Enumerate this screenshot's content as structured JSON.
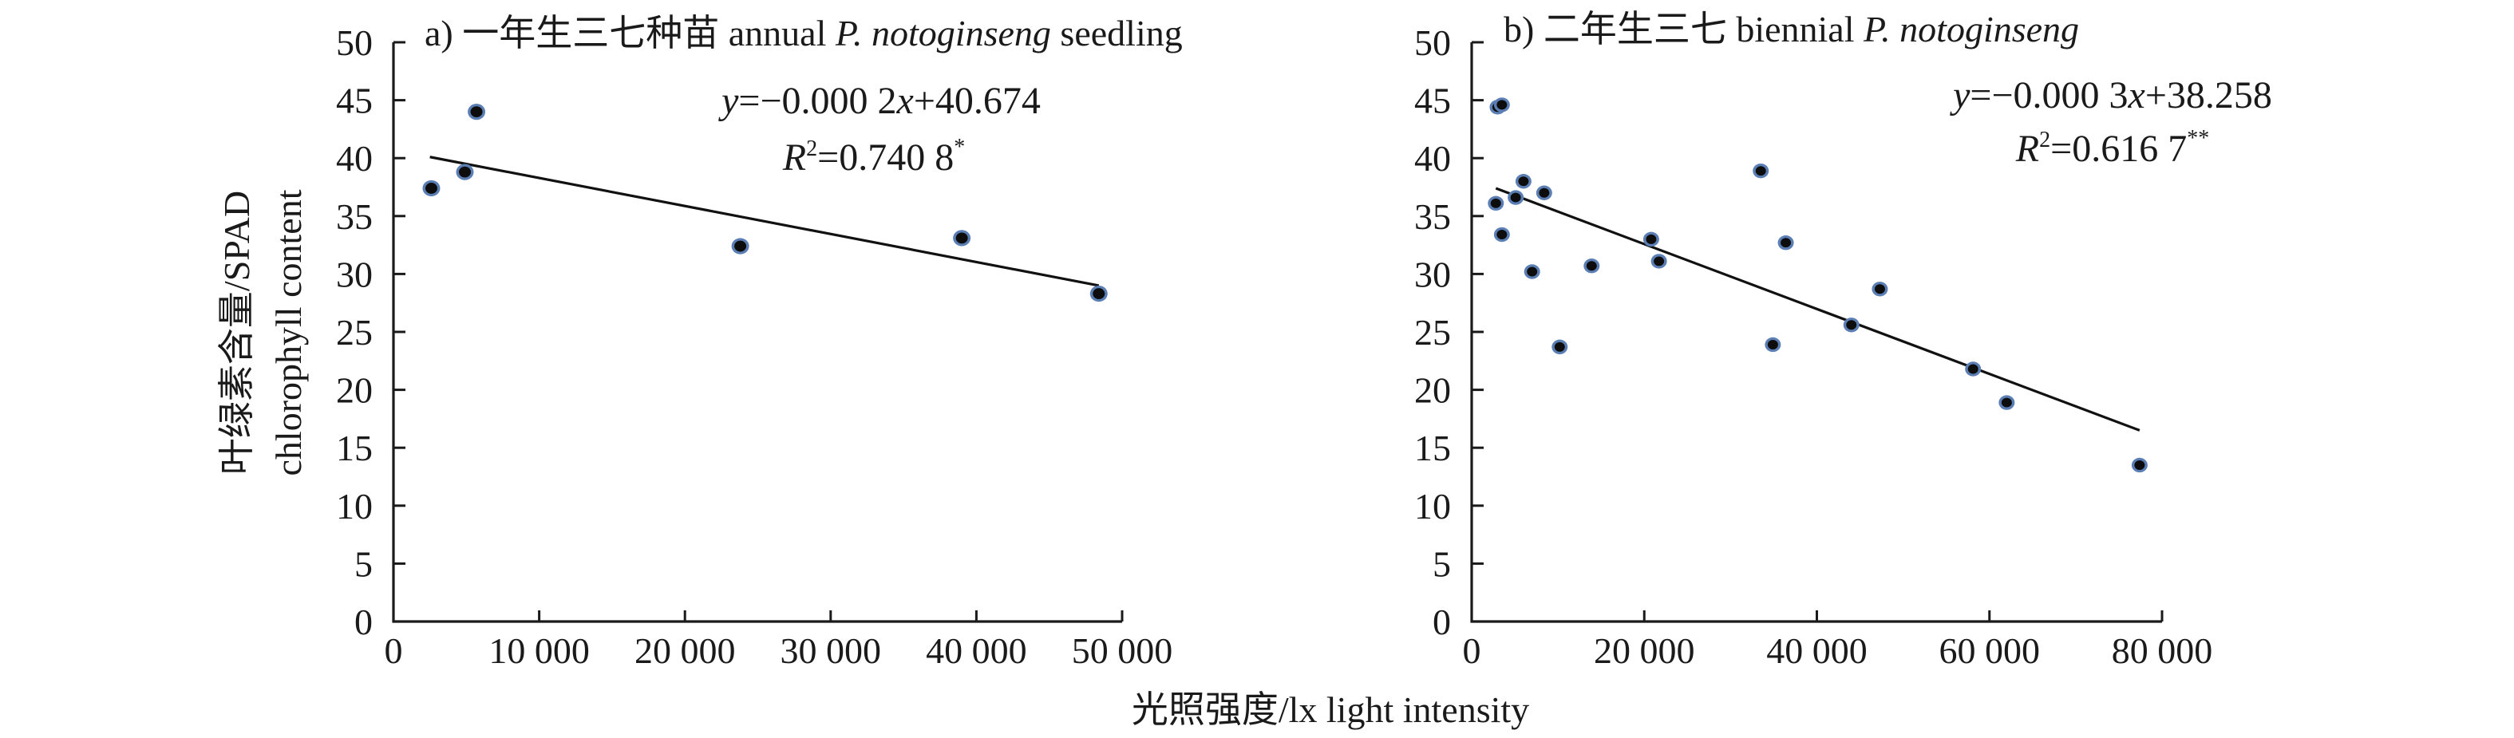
{
  "figure": {
    "y_axis_title_line1": "叶绿素含量/SPAD",
    "y_axis_title_line2": "chlorophyll content",
    "x_axis_title": "光照强度/lx light intensity"
  },
  "chart_data": [
    {
      "type": "scatter",
      "panel": "a",
      "title_prefix": "a) 一年生三七种苗 annual ",
      "title_italic": "P. notoginseng",
      "title_suffix": " seedling",
      "xlabel": "光照强度/lx light intensity",
      "ylabel": "叶绿素含量/SPAD chlorophyll content",
      "xlim": [
        0,
        50000
      ],
      "ylim": [
        0,
        50
      ],
      "xticks": [
        0,
        10000,
        20000,
        30000,
        40000,
        50000
      ],
      "xtick_labels": [
        "0",
        "10 000",
        "20 000",
        "30 000",
        "40 000",
        "50 000"
      ],
      "yticks": [
        0,
        5,
        10,
        15,
        20,
        25,
        30,
        35,
        40,
        45,
        50
      ],
      "ytick_labels": [
        "0",
        "5",
        "10",
        "15",
        "20",
        "25",
        "30",
        "35",
        "40",
        "45",
        "50"
      ],
      "grid": false,
      "points": [
        {
          "x": 2600,
          "y": 37.4
        },
        {
          "x": 4900,
          "y": 38.8
        },
        {
          "x": 5700,
          "y": 44.0
        },
        {
          "x": 23800,
          "y": 32.4
        },
        {
          "x": 39000,
          "y": 33.1
        },
        {
          "x": 48400,
          "y": 28.3
        }
      ],
      "trendline": {
        "x": [
          2500,
          48400
        ],
        "y": [
          40.1,
          29.0
        ],
        "equation_y": "y",
        "equation_rest": "=−0.000 2",
        "equation_x": "x",
        "equation_tail": "+40.674",
        "r2_label": "R",
        "r2_sup": "2",
        "r2_value": "=0.740 8",
        "significance": "*"
      }
    },
    {
      "type": "scatter",
      "panel": "b",
      "title_prefix": "b) 二年生三七 biennial ",
      "title_italic": "P. notoginseng",
      "title_suffix": "",
      "xlabel": "光照强度/lx light intensity",
      "ylabel": "叶绿素含量/SPAD chlorophyll content",
      "xlim": [
        0,
        80000
      ],
      "ylim": [
        0,
        50
      ],
      "xticks": [
        0,
        20000,
        40000,
        60000,
        80000
      ],
      "xtick_labels": [
        "0",
        "20 000",
        "40 000",
        "60 000",
        "80 000"
      ],
      "yticks": [
        0,
        5,
        10,
        15,
        20,
        25,
        30,
        35,
        40,
        45,
        50
      ],
      "ytick_labels": [
        "0",
        "5",
        "10",
        "15",
        "20",
        "25",
        "30",
        "35",
        "40",
        "45",
        "50"
      ],
      "grid": false,
      "points": [
        {
          "x": 3000,
          "y": 44.4
        },
        {
          "x": 3500,
          "y": 44.6
        },
        {
          "x": 2800,
          "y": 36.1
        },
        {
          "x": 5100,
          "y": 36.6
        },
        {
          "x": 6000,
          "y": 38.0
        },
        {
          "x": 8400,
          "y": 37.0
        },
        {
          "x": 3500,
          "y": 33.4
        },
        {
          "x": 7000,
          "y": 30.2
        },
        {
          "x": 13900,
          "y": 30.7
        },
        {
          "x": 20800,
          "y": 33.0
        },
        {
          "x": 21700,
          "y": 31.1
        },
        {
          "x": 10200,
          "y": 23.7
        },
        {
          "x": 33500,
          "y": 38.9
        },
        {
          "x": 36400,
          "y": 32.7
        },
        {
          "x": 34900,
          "y": 23.9
        },
        {
          "x": 47300,
          "y": 28.7
        },
        {
          "x": 44000,
          "y": 25.6
        },
        {
          "x": 58100,
          "y": 21.8
        },
        {
          "x": 62000,
          "y": 18.9
        },
        {
          "x": 77400,
          "y": 13.5
        }
      ],
      "trendline": {
        "x": [
          2800,
          77400
        ],
        "y": [
          37.4,
          16.5
        ],
        "equation_y": "y",
        "equation_rest": "=−0.000 3",
        "equation_x": "x",
        "equation_tail": "+38.258",
        "r2_label": "R",
        "r2_sup": "2",
        "r2_value": "=0.616 7",
        "significance": "**"
      }
    }
  ],
  "colors": {
    "marker_fill": "#0d0d0d",
    "marker_ring": "#5b7fb5",
    "axis": "#1a1a1a",
    "trendline": "#111111"
  }
}
